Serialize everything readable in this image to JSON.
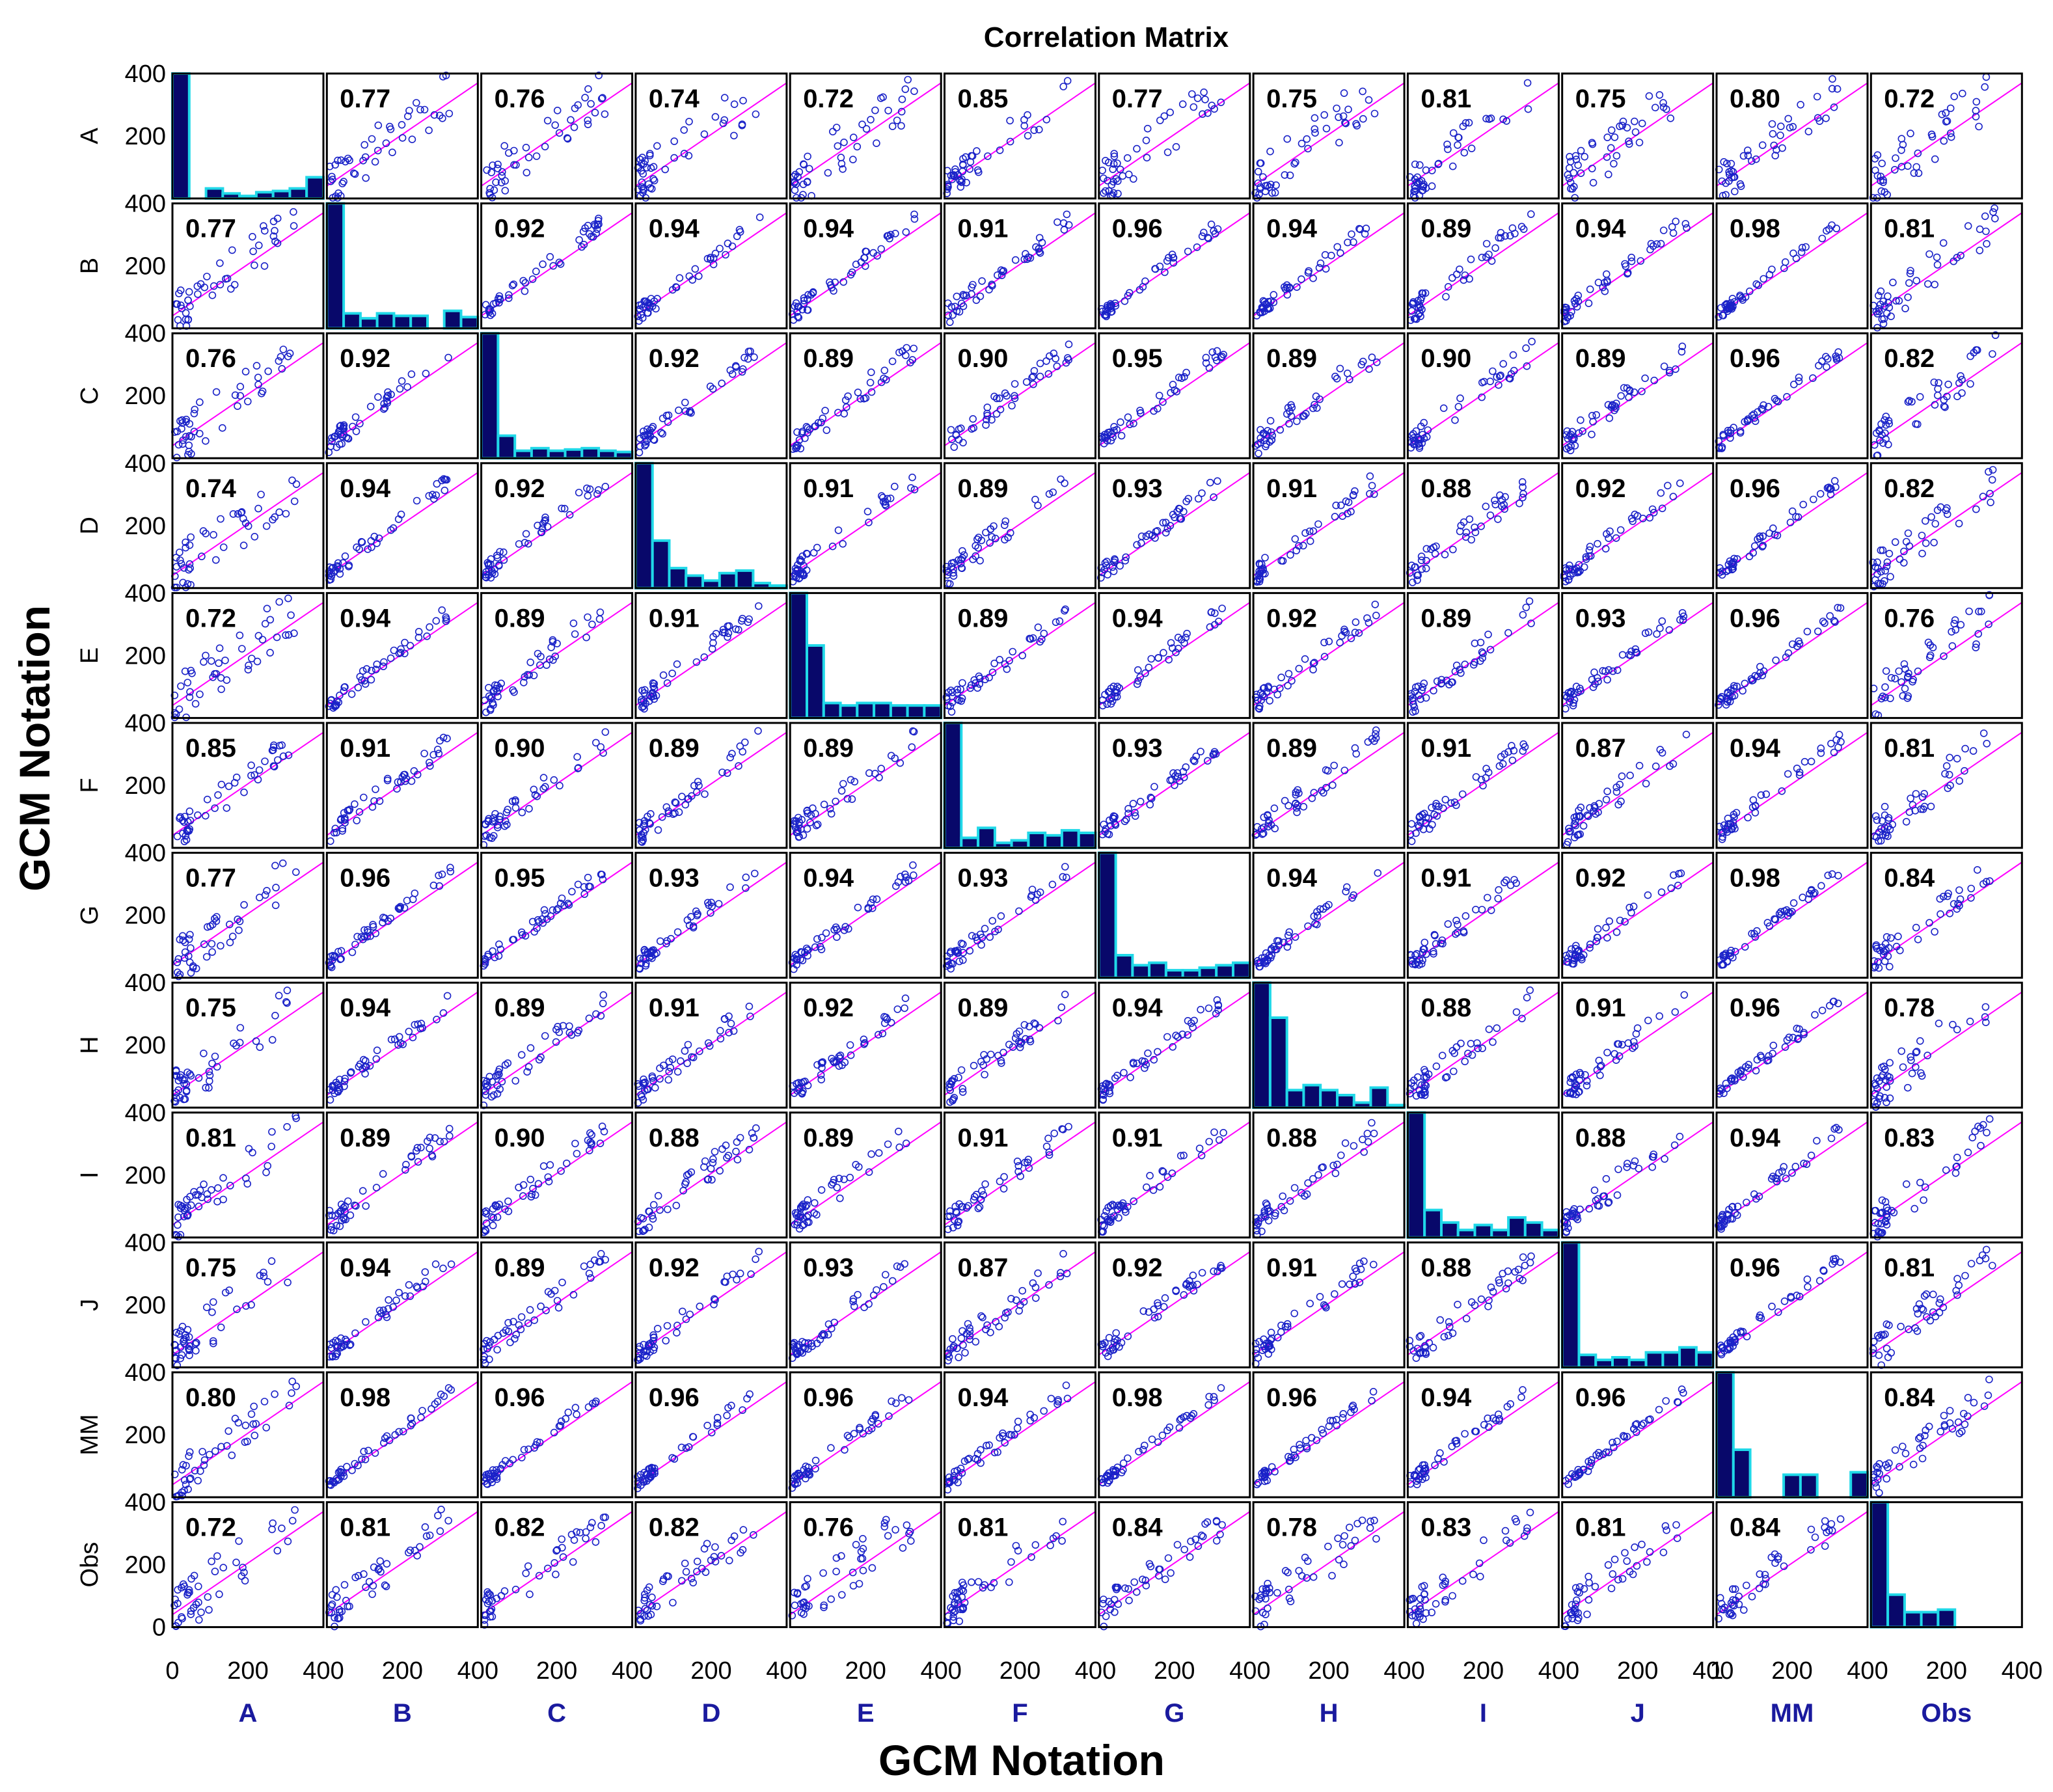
{
  "chart_data": {
    "type": "scatter",
    "title": "Correlation Matrix",
    "xlabel": "GCM Notation",
    "ylabel": "GCM Notation",
    "variables": [
      "A",
      "B",
      "C",
      "D",
      "E",
      "F",
      "G",
      "H",
      "I",
      "J",
      "MM",
      "Obs"
    ],
    "axis_range": [
      0,
      400
    ],
    "y_tick_labels": [
      "400",
      "200",
      "0"
    ],
    "x_tick_labels": [
      [
        "0",
        "200",
        "400"
      ],
      [
        "200",
        "400"
      ],
      [
        "200",
        "400"
      ],
      [
        "200",
        "400"
      ],
      [
        "200",
        "400"
      ],
      [
        "200",
        "400"
      ],
      [
        "200",
        "400"
      ],
      [
        "200",
        "400"
      ],
      [
        "200",
        "400"
      ],
      [
        "200",
        "400"
      ],
      [
        "1",
        "200",
        "400"
      ],
      [
        "200",
        "400"
      ]
    ],
    "correlations": [
      [
        null,
        "0.77",
        "0.76",
        "0.74",
        "0.72",
        "0.85",
        "0.77",
        "0.75",
        "0.81",
        "0.75",
        "0.80",
        "0.72"
      ],
      [
        "0.77",
        null,
        "0.92",
        "0.94",
        "0.94",
        "0.91",
        "0.96",
        "0.94",
        "0.89",
        "0.94",
        "0.98",
        "0.81"
      ],
      [
        "0.76",
        "0.92",
        null,
        "0.92",
        "0.89",
        "0.90",
        "0.95",
        "0.89",
        "0.90",
        "0.89",
        "0.96",
        "0.82"
      ],
      [
        "0.74",
        "0.94",
        "0.92",
        null,
        "0.91",
        "0.89",
        "0.93",
        "0.91",
        "0.88",
        "0.92",
        "0.96",
        "0.82"
      ],
      [
        "0.72",
        "0.94",
        "0.89",
        "0.91",
        null,
        "0.89",
        "0.94",
        "0.92",
        "0.89",
        "0.93",
        "0.96",
        "0.76"
      ],
      [
        "0.85",
        "0.91",
        "0.90",
        "0.89",
        "0.89",
        null,
        "0.93",
        "0.89",
        "0.91",
        "0.87",
        "0.94",
        "0.81"
      ],
      [
        "0.77",
        "0.96",
        "0.95",
        "0.93",
        "0.94",
        "0.93",
        null,
        "0.94",
        "0.91",
        "0.92",
        "0.98",
        "0.84"
      ],
      [
        "0.75",
        "0.94",
        "0.89",
        "0.91",
        "0.92",
        "0.89",
        "0.94",
        null,
        "0.88",
        "0.91",
        "0.96",
        "0.78"
      ],
      [
        "0.81",
        "0.89",
        "0.90",
        "0.88",
        "0.89",
        "0.91",
        "0.91",
        "0.88",
        null,
        "0.88",
        "0.94",
        "0.83"
      ],
      [
        "0.75",
        "0.94",
        "0.89",
        "0.92",
        "0.93",
        "0.87",
        "0.92",
        "0.91",
        "0.88",
        null,
        "0.96",
        "0.81"
      ],
      [
        "0.80",
        "0.98",
        "0.96",
        "0.96",
        "0.96",
        "0.94",
        "0.98",
        "0.96",
        "0.94",
        "0.96",
        null,
        "0.84"
      ],
      [
        "0.72",
        "0.81",
        "0.82",
        "0.82",
        "0.76",
        "0.81",
        "0.84",
        "0.78",
        "0.83",
        "0.81",
        "0.84",
        null
      ]
    ],
    "diagonal_histograms": [
      [
        1.0,
        0.0,
        0.08,
        0.04,
        0.02,
        0.05,
        0.06,
        0.08,
        0.17
      ],
      [
        1.0,
        0.12,
        0.08,
        0.12,
        0.1,
        0.1,
        0.0,
        0.14,
        0.09
      ],
      [
        1.0,
        0.18,
        0.06,
        0.08,
        0.06,
        0.07,
        0.08,
        0.06,
        0.05
      ],
      [
        1.0,
        0.38,
        0.16,
        0.1,
        0.06,
        0.12,
        0.14,
        0.04,
        0.02
      ],
      [
        1.0,
        0.58,
        0.12,
        0.1,
        0.12,
        0.12,
        0.1,
        0.1,
        0.1
      ],
      [
        1.0,
        0.08,
        0.16,
        0.04,
        0.06,
        0.12,
        0.1,
        0.14,
        0.12
      ],
      [
        1.0,
        0.18,
        0.1,
        0.12,
        0.06,
        0.06,
        0.08,
        0.1,
        0.12
      ],
      [
        1.0,
        0.72,
        0.14,
        0.18,
        0.14,
        0.1,
        0.04,
        0.16,
        0.02
      ],
      [
        1.0,
        0.22,
        0.12,
        0.06,
        0.1,
        0.06,
        0.16,
        0.12,
        0.06
      ],
      [
        1.0,
        0.1,
        0.06,
        0.08,
        0.06,
        0.12,
        0.12,
        0.16,
        0.12
      ],
      [
        1.0,
        0.38,
        0.0,
        0.0,
        0.18,
        0.18,
        0.0,
        0.0,
        0.2
      ],
      [
        1.0,
        0.26,
        0.12,
        0.12,
        0.14,
        0.0,
        0.0,
        0.0,
        0.0
      ]
    ],
    "legend": "none",
    "grid": false,
    "colors": {
      "points": "#1a22c8",
      "fit_line": "#ff00ff",
      "histogram_fill": "#08086a",
      "histogram_edge": "#20d8e8",
      "variable_labels": "#1a1a9e",
      "frame": "#000000"
    }
  }
}
